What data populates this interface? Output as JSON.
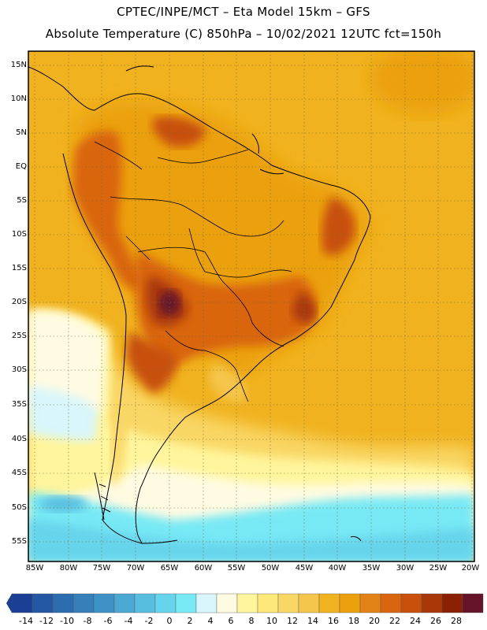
{
  "header": {
    "line1": "CPTEC/INPE/MCT –  Eta Model 15km – GFS",
    "line2": "Absolute Temperature (C) 850hPa – 10/02/2021 12UTC fct=150h"
  },
  "axes": {
    "lat_labels": [
      "15N",
      "10N",
      "5N",
      "EQ",
      "5S",
      "10S",
      "15S",
      "20S",
      "25S",
      "30S",
      "35S",
      "40S",
      "45S",
      "50S",
      "55S"
    ],
    "lon_labels": [
      "85W",
      "80W",
      "75W",
      "70W",
      "65W",
      "60W",
      "55W",
      "50W",
      "45W",
      "40W",
      "35W",
      "30W",
      "25W",
      "20W"
    ]
  },
  "colorbar": {
    "labels": [
      "-14",
      "-12",
      "-10",
      "-8",
      "-6",
      "-4",
      "-2",
      "0",
      "2",
      "4",
      "6",
      "8",
      "10",
      "12",
      "14",
      "16",
      "18",
      "20",
      "22",
      "24",
      "26",
      "28"
    ],
    "colors": [
      "#1b3f94",
      "#2457a4",
      "#2c6db0",
      "#357fbb",
      "#3e93c6",
      "#4aa8d2",
      "#58bedf",
      "#66d4eb",
      "#77e9f5",
      "#d8f6fb",
      "#fffbe2",
      "#fff59c",
      "#fde97a",
      "#f9d765",
      "#f5c64c",
      "#f0b21e",
      "#eba10d",
      "#e38317",
      "#d9650f",
      "#c8500a",
      "#a93808",
      "#8a2006",
      "#65142a"
    ]
  },
  "legend": {
    "colors": {
      "background": "#f0b21e",
      "warm_land": "#d9650f",
      "hot_core": "#8a2006",
      "cool_sea": "#fffbe2",
      "cold_sea": "#66d4eb",
      "coast": "#000000"
    }
  }
}
